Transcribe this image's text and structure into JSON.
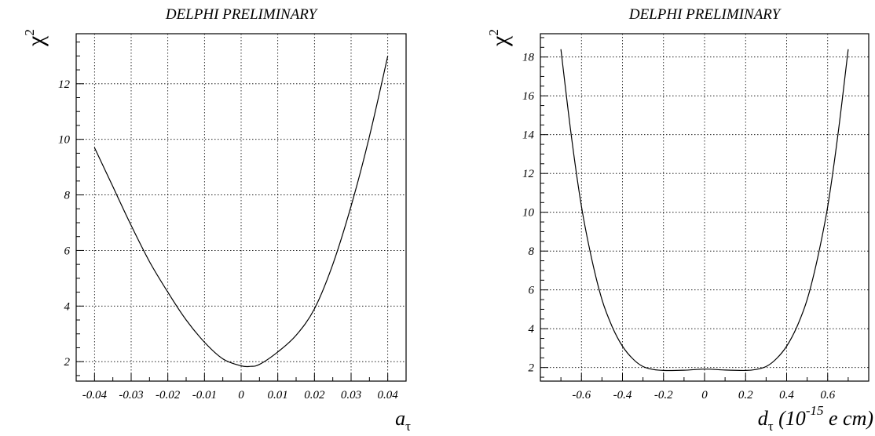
{
  "chart_data": [
    {
      "type": "line",
      "title": "DELPHI PRELIMINARY",
      "ylabel": "χ",
      "ylabel_sup": "2",
      "xlabel": "a",
      "xlabel_sub": "τ",
      "xlabel_sup": "",
      "xlabel_rest": "",
      "xlim": [
        -0.045,
        0.045
      ],
      "ylim": [
        1.3,
        13.8
      ],
      "xticks": [
        -0.04,
        -0.03,
        -0.02,
        -0.01,
        0,
        0.01,
        0.02,
        0.03,
        0.04
      ],
      "xtick_labels": [
        "-0.04",
        "-0.03",
        "-0.02",
        "-0.01",
        "0",
        "0.01",
        "0.02",
        "0.03",
        "0.04"
      ],
      "yticks": [
        2,
        4,
        6,
        8,
        10,
        12
      ],
      "ytick_labels": [
        "2",
        "4",
        "6",
        "8",
        "10",
        "12"
      ],
      "grid": true,
      "series": [
        {
          "x": [
            -0.04,
            -0.035,
            -0.03,
            -0.025,
            -0.02,
            -0.015,
            -0.01,
            -0.005,
            0,
            0.0025,
            0.005,
            0.01,
            0.015,
            0.02,
            0.025,
            0.03,
            0.035,
            0.04
          ],
          "y": [
            9.7,
            8.3,
            6.9,
            5.6,
            4.5,
            3.5,
            2.7,
            2.1,
            1.85,
            1.83,
            1.9,
            2.35,
            2.95,
            3.9,
            5.5,
            7.6,
            10.1,
            13.0
          ]
        }
      ]
    },
    {
      "type": "line",
      "title": "DELPHI PRELIMINARY",
      "ylabel": "χ",
      "ylabel_sup": "2",
      "xlabel": "d",
      "xlabel_sub": "τ",
      "xlabel_sup": "-15",
      "xlabel_pre": " (10",
      "xlabel_rest": " e cm)",
      "xlim": [
        -0.8,
        0.8
      ],
      "ylim": [
        1.3,
        19.2
      ],
      "xticks": [
        -0.6,
        -0.4,
        -0.2,
        0,
        0.2,
        0.4,
        0.6
      ],
      "xtick_labels": [
        "-0.6",
        "-0.4",
        "-0.2",
        "0",
        "0.2",
        "0.4",
        "0.6"
      ],
      "yticks": [
        2,
        4,
        6,
        8,
        10,
        12,
        14,
        16,
        18
      ],
      "ytick_labels": [
        "2",
        "4",
        "6",
        "8",
        "10",
        "12",
        "14",
        "16",
        "18"
      ],
      "grid": true,
      "series": [
        {
          "x": [
            -0.7,
            -0.65,
            -0.6,
            -0.55,
            -0.5,
            -0.45,
            -0.4,
            -0.35,
            -0.3,
            -0.25,
            -0.2,
            -0.1,
            0,
            0.1,
            0.2,
            0.25,
            0.3,
            0.35,
            0.4,
            0.45,
            0.5,
            0.55,
            0.6,
            0.65,
            0.7
          ],
          "y": [
            18.4,
            14.0,
            10.3,
            7.6,
            5.5,
            4.1,
            3.1,
            2.45,
            2.05,
            1.9,
            1.85,
            1.86,
            1.92,
            1.87,
            1.85,
            1.9,
            2.05,
            2.45,
            3.1,
            4.1,
            5.5,
            7.6,
            10.3,
            14.0,
            18.4
          ]
        }
      ]
    }
  ]
}
